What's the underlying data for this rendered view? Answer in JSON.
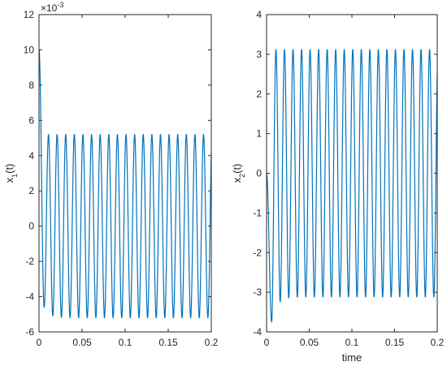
{
  "chart_data": [
    {
      "type": "line",
      "ylabel_base": "x",
      "ylabel_sub": "1",
      "ylabel_suffix": "(t)",
      "xlabel": "",
      "exponent_base": "×10",
      "exponent_power": "-3",
      "xlim": [
        0,
        0.2
      ],
      "ylim": [
        -6,
        12
      ],
      "xticks": [
        0,
        0.05,
        0.1,
        0.15,
        0.2
      ],
      "xtick_labels": [
        "0",
        "0.05",
        "0.1",
        "0.15",
        "0.2"
      ],
      "yticks": [
        -6,
        -4,
        -2,
        0,
        2,
        4,
        6,
        8,
        10,
        12
      ],
      "ytick_labels": [
        "-6",
        "-4",
        "-2",
        "0",
        "2",
        "4",
        "6",
        "8",
        "10",
        "12"
      ],
      "grid": false,
      "color": "#0072BD",
      "series": [
        {
          "frequency": 100,
          "initial_value": 10,
          "amplitude": 5.2,
          "first_min": -4.6,
          "x_end": 0.2,
          "end_value": 5.0
        }
      ]
    },
    {
      "type": "line",
      "ylabel_base": "x",
      "ylabel_sub": "2",
      "ylabel_suffix": "(t)",
      "xlabel": "time",
      "xlim": [
        0,
        0.2
      ],
      "ylim": [
        -4,
        4
      ],
      "xticks": [
        0,
        0.05,
        0.1,
        0.15,
        0.2
      ],
      "xtick_labels": [
        "0",
        "0.05",
        "0.1",
        "0.15",
        "0.2"
      ],
      "yticks": [
        -4,
        -3,
        -2,
        -1,
        0,
        1,
        2,
        3,
        4
      ],
      "ytick_labels": [
        "-4",
        "-3",
        "-2",
        "-1",
        "0",
        "1",
        "2",
        "3",
        "4"
      ],
      "grid": false,
      "color": "#0072BD",
      "series": [
        {
          "frequency": 100,
          "initial_value": 0,
          "amplitude": 3.12,
          "first_min": -3.75,
          "x_end": 0.2,
          "end_value": -1.0
        }
      ]
    }
  ]
}
